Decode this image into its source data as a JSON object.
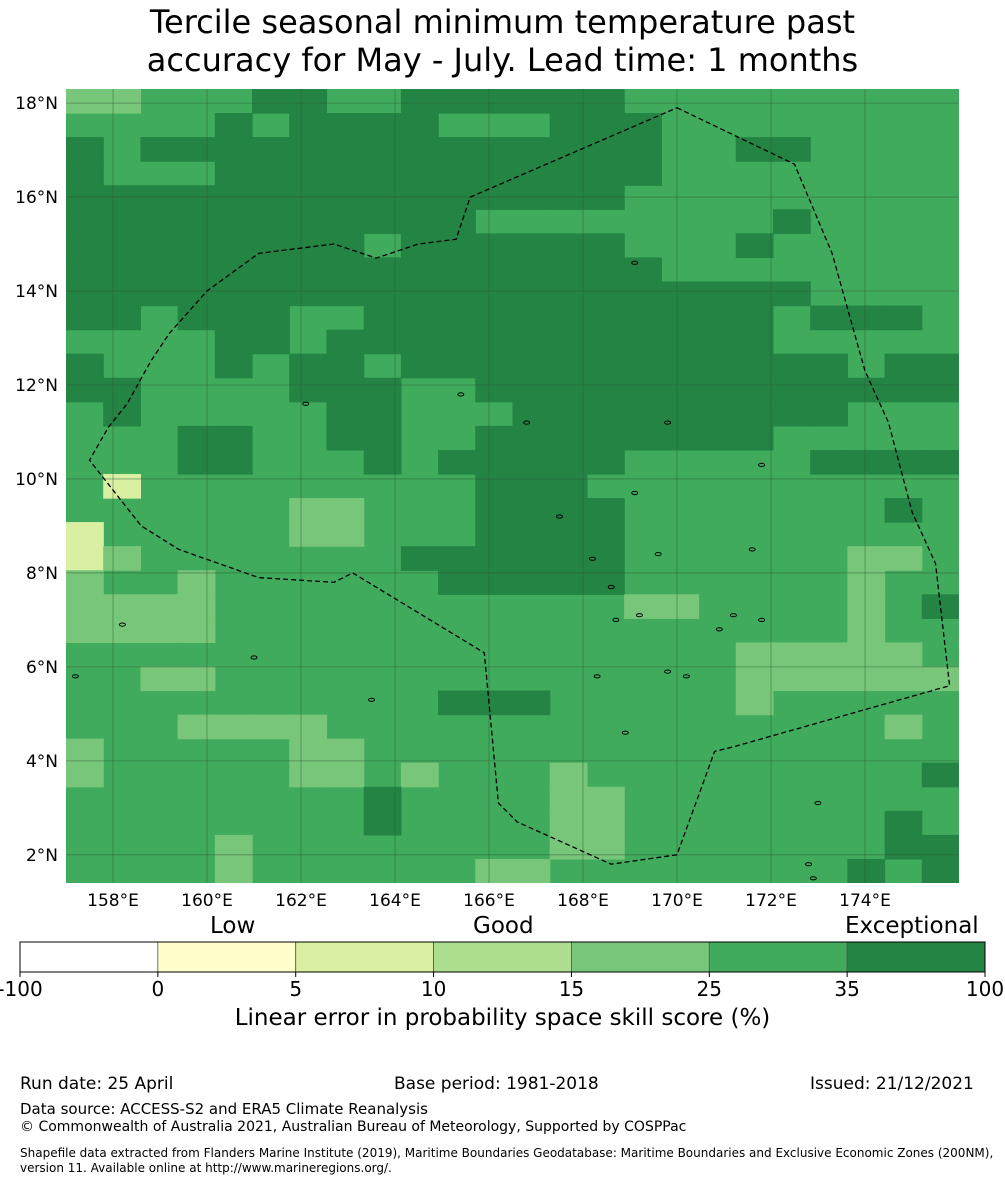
{
  "title": {
    "line1": "Tercile seasonal minimum temperature past",
    "line2": "accuracy for May - July. Lead time: 1 months"
  },
  "map": {
    "lat_labels": [
      "18°N",
      "16°N",
      "14°N",
      "12°N",
      "10°N",
      "8°N",
      "6°N",
      "4°N",
      "2°N"
    ],
    "lon_labels": [
      "158°E",
      "160°E",
      "162°E",
      "164°E",
      "166°E",
      "168°E",
      "170°E",
      "172°E",
      "174°E"
    ],
    "lat_range": [
      1.4,
      18.3
    ],
    "lon_range": [
      157.0,
      176.0
    ],
    "field_base_category": "25-35",
    "field_grid": [
      "BBCCCDDCCDDDDDDCCCCCCCCC",
      "CCCCDCDDDDCCCDDDCCCCCCCC",
      "DCDDDDDDDDDDDDDDCCDDCCCC",
      "DCCCDDDDDDDDDDDDCCCCCCCC",
      "DDDDDDDDDDDDDDDCCCCCCCCC",
      "DDDDDDDDDDDCCCCCCCCDCCCC",
      "DDDDDDDDCDDDDDDCCCDCCCCC",
      "DDDDDDDDDDDDDDDDCCCCCCCC",
      "DDDDDDDDDDDDDDDDDDDDCCCC",
      "DDCDDDCCDDDDDDDDDDDCDDDC",
      "CCCCDDCDDDDDDDDDDDDCCCCC",
      "DCCCDCDDCDDDDDDDDDDDDCDD",
      "DDCCCCDDDCCDDDDDDDDDDDDD",
      "CDCCCCCDDCCCDDDDDDDDDCCC",
      "CCCDDCCDDCCDDDDDDDDCCCCC",
      "CCCDDCCCDCDDDDDCCCCCDDDD",
      "CACCCCCCCCCDDDCCCCCCCCCC",
      "CCCCCCBBCCCDDDDCCCCCCCDC",
      "ACCCCCBBCCCDDDDCCCCCCCCC",
      "ABCCCCCCCDDDDDDCCCCCCBBC",
      "BCCBCCCCCCDDDDDCCCCCCBCC",
      "BBBBCCCCCCCCCCCBBCCCCBCD",
      "BBBBCCCCCCCCCCCCCCCCCBCC",
      "CCCCCCCCCCCCCCCCCCBBBBBC",
      "CCBBCCCCCCCCCCCCCCBBBBBB",
      "CCCCCCCCCCDDDCCCCCBCCCCC",
      "CCCBBBBCCCCCCCCCCCCCCCBC",
      "BCCCCCBBCCCCCCCCCCCCCCCC",
      "BCCCCCBBCBCCCBCCCCCCCCCD",
      "CCCCCCCCDCCCCBBCCCCCCCCC",
      "CCCCCCCCDCCCCBBCCCCCCCDC",
      "CCCCBCCCCCCCCBBCCCCCCCDD",
      "CCCCBCCCCCCBBCCCCCCCCDCD"
    ],
    "eez_boundary": [
      [
        170.0,
        17.9
      ],
      [
        172.5,
        16.7
      ],
      [
        173.3,
        14.8
      ],
      [
        174.0,
        12.3
      ],
      [
        174.5,
        11.2
      ],
      [
        175.0,
        9.3
      ],
      [
        175.5,
        8.2
      ],
      [
        175.8,
        5.6
      ],
      [
        171.2,
        4.3
      ],
      [
        170.8,
        4.2
      ],
      [
        170.0,
        2.0
      ],
      [
        168.6,
        1.8
      ],
      [
        166.6,
        2.7
      ],
      [
        166.2,
        3.1
      ],
      [
        165.9,
        6.3
      ],
      [
        163.1,
        8.0
      ],
      [
        162.7,
        7.8
      ],
      [
        161.1,
        7.9
      ],
      [
        159.4,
        8.5
      ],
      [
        158.6,
        9.0
      ],
      [
        157.5,
        10.4
      ],
      [
        157.9,
        11.1
      ],
      [
        158.3,
        11.6
      ],
      [
        158.8,
        12.5
      ],
      [
        159.2,
        13.1
      ],
      [
        160.0,
        14.0
      ],
      [
        161.1,
        14.8
      ],
      [
        162.7,
        15.0
      ],
      [
        163.6,
        14.7
      ],
      [
        164.5,
        15.0
      ],
      [
        165.3,
        15.1
      ],
      [
        165.6,
        16.0
      ]
    ],
    "islands": [
      [
        158.2,
        6.9
      ],
      [
        163.5,
        5.3
      ],
      [
        168.7,
        7.0
      ],
      [
        169.2,
        7.1
      ],
      [
        171.2,
        7.1
      ],
      [
        171.8,
        7.0
      ],
      [
        169.8,
        5.9
      ],
      [
        170.9,
        6.8
      ],
      [
        168.9,
        4.6
      ],
      [
        173.0,
        3.1
      ],
      [
        172.8,
        1.8
      ],
      [
        172.9,
        1.5
      ],
      [
        162.1,
        11.6
      ],
      [
        165.4,
        11.8
      ],
      [
        166.8,
        11.2
      ],
      [
        169.8,
        11.2
      ],
      [
        171.8,
        10.3
      ],
      [
        169.1,
        9.7
      ],
      [
        167.5,
        9.2
      ],
      [
        168.2,
        8.3
      ],
      [
        169.6,
        8.4
      ],
      [
        168.3,
        5.8
      ],
      [
        171.6,
        8.5
      ],
      [
        170.2,
        5.8
      ],
      [
        168.6,
        7.7
      ],
      [
        161.0,
        6.2
      ],
      [
        157.2,
        5.8
      ],
      [
        169.1,
        14.6
      ]
    ]
  },
  "colorbar": {
    "group_labels": [
      "Low",
      "Good",
      "Exceptional"
    ],
    "tick_labels": [
      "-100",
      "0",
      "5",
      "10",
      "15",
      "25",
      "35",
      "100"
    ],
    "colors": [
      "#ffffff",
      "#ffffcc",
      "#d9f0a3",
      "#addd8e",
      "#78c679",
      "#41ab5d",
      "#238443"
    ],
    "title": "Linear error in probability space skill score (%)"
  },
  "footer": {
    "run_date": "Run date: 25 April",
    "base_period": "Base period: 1981-2018",
    "issued": "Issued: 21/12/2021",
    "data_source": "Data source: ACCESS-S2 and ERA5 Climate Reanalysis",
    "copyright": "© Commonwealth of Australia 2021, Australian Bureau of Meteorology, Supported by COSPPac",
    "shapefile": "Shapefile data extracted from Flanders Marine Institute (2019), Maritime Boundaries Geodatabase: Maritime Boundaries and Exclusive Economic Zones (200NM), version 11. Available online at http://www.marineregions.org/."
  }
}
